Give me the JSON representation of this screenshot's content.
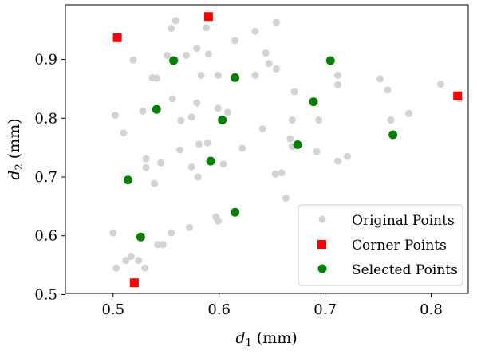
{
  "chart_data": {
    "type": "scatter",
    "xlabel": "d1 (mm)",
    "ylabel": "d2 (mm)",
    "xlabel_main": "d",
    "xlabel_sub": "1",
    "xlabel_unit": " (mm)",
    "ylabel_main": "d",
    "ylabel_sub": "2",
    "ylabel_unit": " (mm)",
    "xlim": [
      0.455,
      0.835
    ],
    "ylim": [
      0.502,
      0.993
    ],
    "xticks": [
      0.5,
      0.6,
      0.7,
      0.8
    ],
    "xtick_labels": [
      "0.5",
      "0.6",
      "0.7",
      "0.8"
    ],
    "yticks": [
      0.5,
      0.6,
      0.7,
      0.8,
      0.9
    ],
    "ytick_labels": [
      "0.5",
      "0.6",
      "0.7",
      "0.8",
      "0.9"
    ],
    "grid": false,
    "legend_position": "bottom-right",
    "series": [
      {
        "name": "Original Points",
        "marker": "circle",
        "color": "#d3d3d3",
        "points": [
          [
            0.519,
            0.899
          ],
          [
            0.555,
            0.953
          ],
          [
            0.559,
            0.966
          ],
          [
            0.579,
            0.919
          ],
          [
            0.588,
            0.954
          ],
          [
            0.615,
            0.932
          ],
          [
            0.634,
            0.948
          ],
          [
            0.654,
            0.963
          ],
          [
            0.551,
            0.907
          ],
          [
            0.559,
            0.899
          ],
          [
            0.569,
            0.907
          ],
          [
            0.59,
            0.909
          ],
          [
            0.644,
            0.911
          ],
          [
            0.647,
            0.893
          ],
          [
            0.654,
            0.884
          ],
          [
            0.537,
            0.869
          ],
          [
            0.541,
            0.868
          ],
          [
            0.583,
            0.873
          ],
          [
            0.599,
            0.873
          ],
          [
            0.634,
            0.873
          ],
          [
            0.712,
            0.873
          ],
          [
            0.712,
            0.857
          ],
          [
            0.671,
            0.845
          ],
          [
            0.759,
            0.848
          ],
          [
            0.762,
            0.797
          ],
          [
            0.809,
            0.858
          ],
          [
            0.827,
            0.833
          ],
          [
            0.752,
            0.867
          ],
          [
            0.502,
            0.805
          ],
          [
            0.528,
            0.812
          ],
          [
            0.556,
            0.833
          ],
          [
            0.564,
            0.796
          ],
          [
            0.574,
            0.802
          ],
          [
            0.579,
            0.826
          ],
          [
            0.599,
            0.817
          ],
          [
            0.608,
            0.81
          ],
          [
            0.641,
            0.782
          ],
          [
            0.669,
            0.797
          ],
          [
            0.694,
            0.797
          ],
          [
            0.779,
            0.808
          ],
          [
            0.51,
            0.775
          ],
          [
            0.531,
            0.731
          ],
          [
            0.531,
            0.716
          ],
          [
            0.545,
            0.724
          ],
          [
            0.563,
            0.746
          ],
          [
            0.574,
            0.717
          ],
          [
            0.581,
            0.756
          ],
          [
            0.589,
            0.758
          ],
          [
            0.604,
            0.722
          ],
          [
            0.622,
            0.749
          ],
          [
            0.653,
            0.705
          ],
          [
            0.659,
            0.707
          ],
          [
            0.667,
            0.765
          ],
          [
            0.669,
            0.752
          ],
          [
            0.692,
            0.743
          ],
          [
            0.712,
            0.727
          ],
          [
            0.721,
            0.735
          ],
          [
            0.539,
            0.689
          ],
          [
            0.58,
            0.7
          ],
          [
            0.663,
            0.664
          ],
          [
            0.597,
            0.632
          ],
          [
            0.599,
            0.625
          ],
          [
            0.572,
            0.614
          ],
          [
            0.5,
            0.605
          ],
          [
            0.542,
            0.585
          ],
          [
            0.547,
            0.585
          ],
          [
            0.555,
            0.605
          ],
          [
            0.517,
            0.565
          ],
          [
            0.503,
            0.545
          ],
          [
            0.512,
            0.558
          ],
          [
            0.524,
            0.558
          ],
          [
            0.53,
            0.545
          ]
        ]
      },
      {
        "name": "Corner Points",
        "marker": "square",
        "color": "#ff0000",
        "points": [
          [
            0.504,
            0.937
          ],
          [
            0.59,
            0.973
          ],
          [
            0.825,
            0.838
          ],
          [
            0.52,
            0.52
          ]
        ]
      },
      {
        "name": "Selected Points",
        "marker": "circle",
        "color": "#008000",
        "points": [
          [
            0.557,
            0.898
          ],
          [
            0.615,
            0.869
          ],
          [
            0.705,
            0.898
          ],
          [
            0.689,
            0.828
          ],
          [
            0.541,
            0.815
          ],
          [
            0.603,
            0.797
          ],
          [
            0.764,
            0.772
          ],
          [
            0.674,
            0.755
          ],
          [
            0.592,
            0.727
          ],
          [
            0.514,
            0.695
          ],
          [
            0.615,
            0.64
          ],
          [
            0.526,
            0.598
          ]
        ]
      }
    ]
  }
}
